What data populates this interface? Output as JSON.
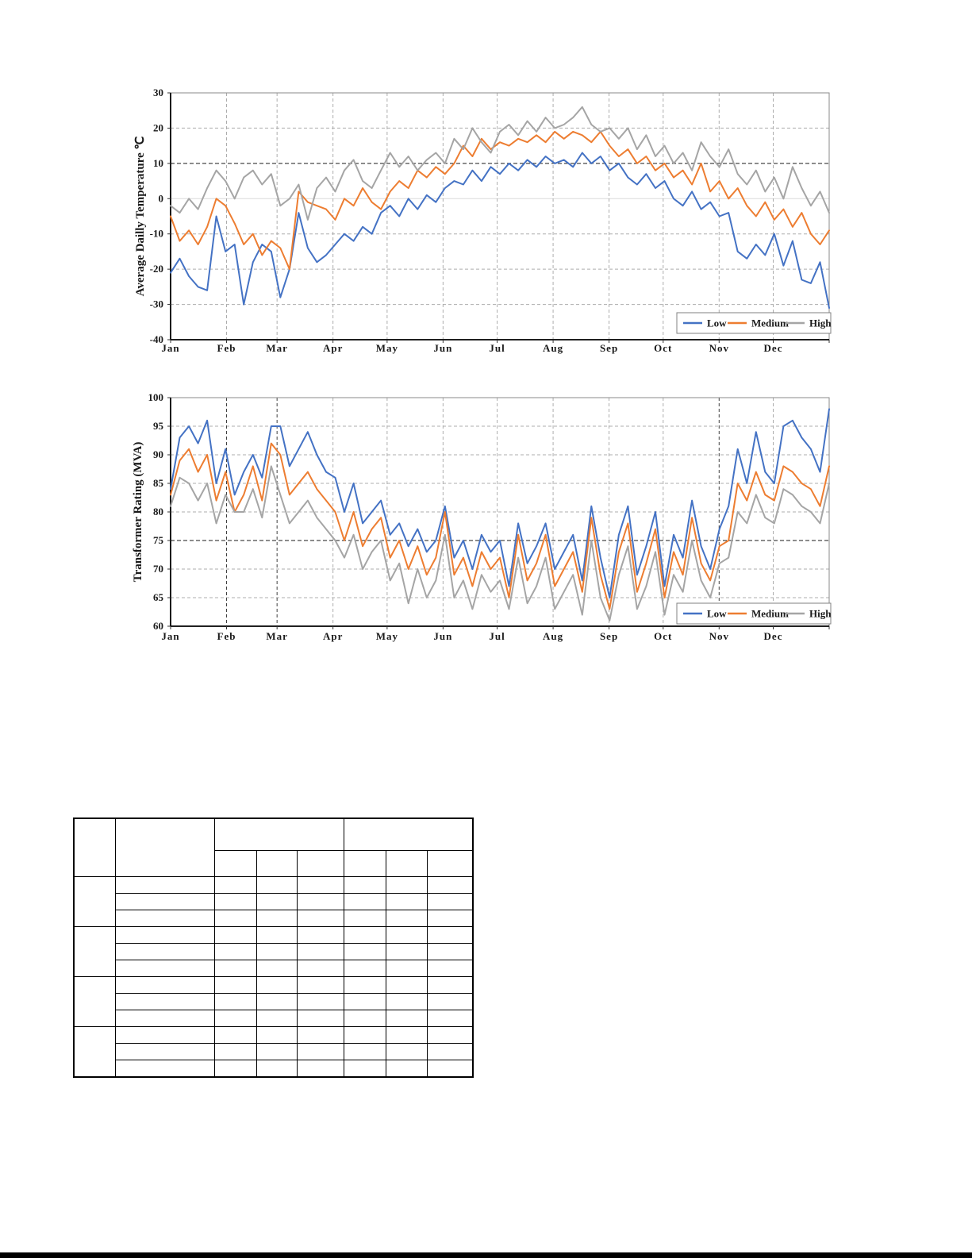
{
  "page": {
    "background": "#ffffff",
    "bottom_bar_color": "#000000"
  },
  "legend_labels": [
    "Low",
    "Medium",
    "High"
  ],
  "series_colors": {
    "low": "#4472C4",
    "medium": "#ED7D31",
    "high": "#A5A5A5"
  },
  "chart_data": [
    {
      "type": "line",
      "name": "temperature-chart",
      "title": "",
      "xlabel": "",
      "ylabel": "Average Dailly Temperature ℃",
      "ylim": [
        -40,
        30
      ],
      "yticks": [
        30,
        20,
        10,
        0,
        -10,
        -20,
        -30,
        -40
      ],
      "x_tick_labels": [
        "Jan",
        "Feb",
        "Mar",
        "Apr",
        "May",
        "Jun",
        "Jul",
        "Aug",
        "Sep",
        "Oct",
        "Nov",
        "Dec"
      ],
      "grid": "dashed",
      "emphasized_hgrid_value": 10,
      "light_solid_hgrid_value": 0,
      "emphasized_vgrid_months": [],
      "legend_position": "bottom-right-inside",
      "legend": [
        "Low",
        "Medium",
        "High"
      ],
      "x_range_days": [
        0,
        364
      ],
      "series": [
        {
          "name": "Low",
          "color": "#4472C4",
          "values": [
            -21,
            -17,
            -22,
            -25,
            -26,
            -5,
            -15,
            -13,
            -30,
            -18,
            -13,
            -15,
            -28,
            -20,
            -4,
            -14,
            -18,
            -16,
            -13,
            -10,
            -12,
            -8,
            -10,
            -4,
            -2,
            -5,
            0,
            -3,
            1,
            -1,
            3,
            5,
            4,
            8,
            5,
            9,
            7,
            10,
            8,
            11,
            9,
            12,
            10,
            11,
            9,
            13,
            10,
            12,
            8,
            10,
            6,
            4,
            7,
            3,
            5,
            0,
            -2,
            2,
            -3,
            -1,
            -5,
            -4,
            -15,
            -17,
            -13,
            -16,
            -10,
            -19,
            -12,
            -23,
            -24,
            -18,
            -31
          ]
        },
        {
          "name": "Medium",
          "color": "#ED7D31",
          "values": [
            -5,
            -12,
            -9,
            -13,
            -8,
            0,
            -2,
            -7,
            -13,
            -10,
            -16,
            -12,
            -14,
            -20,
            2,
            -1,
            -2,
            -3,
            -6,
            0,
            -2,
            3,
            -1,
            -3,
            2,
            5,
            3,
            8,
            6,
            9,
            7,
            10,
            15,
            12,
            17,
            14,
            16,
            15,
            17,
            16,
            18,
            16,
            19,
            17,
            19,
            18,
            16,
            19,
            15,
            12,
            14,
            10,
            12,
            8,
            10,
            6,
            8,
            4,
            10,
            2,
            5,
            0,
            3,
            -2,
            -5,
            -1,
            -6,
            -3,
            -8,
            -4,
            -10,
            -13,
            -9
          ]
        },
        {
          "name": "High",
          "color": "#A5A5A5",
          "values": [
            -2,
            -4,
            0,
            -3,
            3,
            8,
            5,
            0,
            6,
            8,
            4,
            7,
            -2,
            0,
            4,
            -6,
            3,
            6,
            2,
            8,
            11,
            5,
            3,
            8,
            13,
            9,
            12,
            8,
            11,
            13,
            10,
            17,
            14,
            20,
            16,
            13,
            19,
            21,
            18,
            22,
            19,
            23,
            20,
            21,
            23,
            26,
            21,
            19,
            20,
            17,
            20,
            14,
            18,
            12,
            15,
            10,
            13,
            8,
            16,
            12,
            9,
            14,
            7,
            4,
            8,
            2,
            6,
            0,
            9,
            3,
            -2,
            2,
            -4
          ]
        }
      ]
    },
    {
      "type": "line",
      "name": "transformer-rating-chart",
      "title": "",
      "xlabel": "",
      "ylabel": "Transformer Rating (MVA)",
      "ylim": [
        60,
        100
      ],
      "yticks": [
        100,
        95,
        90,
        85,
        80,
        75,
        70,
        65,
        60
      ],
      "x_tick_labels": [
        "Jan",
        "Feb",
        "Mar",
        "Apr",
        "May",
        "Jun",
        "Jul",
        "Aug",
        "Sep",
        "Oct",
        "Nov",
        "Dec"
      ],
      "grid": "dashed",
      "emphasized_hgrid_value": 75,
      "light_solid_hgrid_value": null,
      "emphasized_vgrid_months": [
        "Feb",
        "Mar",
        "Nov"
      ],
      "legend_position": "bottom-right-inside",
      "legend": [
        "Low",
        "Medium",
        "High"
      ],
      "x_range_days": [
        0,
        364
      ],
      "series": [
        {
          "name": "Low",
          "color": "#4472C4",
          "values": [
            84,
            93,
            95,
            92,
            96,
            85,
            91,
            83,
            87,
            90,
            86,
            95,
            95,
            88,
            91,
            94,
            90,
            87,
            86,
            80,
            85,
            78,
            80,
            82,
            76,
            78,
            74,
            77,
            73,
            75,
            81,
            72,
            75,
            70,
            76,
            73,
            75,
            67,
            78,
            71,
            74,
            78,
            70,
            73,
            76,
            68,
            81,
            72,
            65,
            76,
            81,
            69,
            74,
            80,
            67,
            76,
            72,
            82,
            74,
            70,
            77,
            81,
            91,
            85,
            94,
            87,
            85,
            95,
            96,
            93,
            91,
            87,
            98
          ]
        },
        {
          "name": "Medium",
          "color": "#ED7D31",
          "values": [
            83,
            89,
            91,
            87,
            90,
            82,
            87,
            80,
            83,
            88,
            82,
            92,
            90,
            83,
            85,
            87,
            84,
            82,
            80,
            75,
            80,
            74,
            77,
            79,
            72,
            75,
            70,
            74,
            69,
            72,
            80,
            69,
            72,
            67,
            73,
            70,
            72,
            65,
            76,
            68,
            71,
            76,
            67,
            70,
            73,
            66,
            79,
            69,
            63,
            73,
            78,
            66,
            71,
            77,
            65,
            73,
            69,
            79,
            71,
            68,
            74,
            75,
            85,
            82,
            87,
            83,
            82,
            88,
            87,
            85,
            84,
            81,
            88
          ]
        },
        {
          "name": "High",
          "color": "#A5A5A5",
          "values": [
            81,
            86,
            85,
            82,
            85,
            78,
            83,
            80,
            80,
            84,
            79,
            88,
            83,
            78,
            80,
            82,
            79,
            77,
            75,
            72,
            76,
            70,
            73,
            75,
            68,
            71,
            64,
            70,
            65,
            68,
            76,
            65,
            68,
            63,
            69,
            66,
            68,
            63,
            72,
            64,
            67,
            72,
            63,
            66,
            69,
            62,
            75,
            65,
            61,
            69,
            74,
            63,
            67,
            73,
            62,
            69,
            66,
            75,
            68,
            65,
            71,
            72,
            80,
            78,
            83,
            79,
            78,
            84,
            83,
            81,
            80,
            78,
            85
          ]
        }
      ]
    }
  ],
  "table": {
    "header": {
      "corner": "",
      "row_label_header": "",
      "col_groups": [
        "",
        ""
      ],
      "sub_columns": [
        "",
        "",
        "",
        "",
        "",
        ""
      ]
    },
    "body_groups": [
      {
        "group_label": "",
        "rows": [
          [
            "",
            "",
            "",
            "",
            "",
            "",
            ""
          ],
          [
            "",
            "",
            "",
            "",
            "",
            "",
            ""
          ],
          [
            "",
            "",
            "",
            "",
            "",
            "",
            ""
          ]
        ]
      },
      {
        "group_label": "",
        "rows": [
          [
            "",
            "",
            "",
            "",
            "",
            "",
            ""
          ],
          [
            "",
            "",
            "",
            "",
            "",
            "",
            ""
          ],
          [
            "",
            "",
            "",
            "",
            "",
            "",
            ""
          ]
        ]
      },
      {
        "group_label": "",
        "rows": [
          [
            "",
            "",
            "",
            "",
            "",
            "",
            ""
          ],
          [
            "",
            "",
            "",
            "",
            "",
            "",
            ""
          ],
          [
            "",
            "",
            "",
            "",
            "",
            "",
            ""
          ]
        ]
      },
      {
        "group_label": "",
        "rows": [
          [
            "",
            "",
            "",
            "",
            "",
            "",
            ""
          ],
          [
            "",
            "",
            "",
            "",
            "",
            "",
            ""
          ],
          [
            "",
            "",
            "",
            "",
            "",
            "",
            ""
          ]
        ]
      }
    ]
  }
}
